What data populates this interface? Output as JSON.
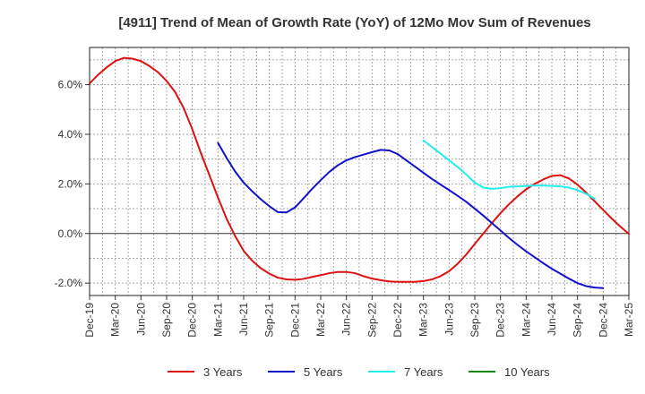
{
  "chart_data": {
    "type": "line",
    "title": "[4911]  Trend of Mean of Growth Rate (YoY) of 12Mo Mov Sum of Revenues",
    "xlabel": "",
    "ylabel": "",
    "ylim": [
      -2.5,
      7.5
    ],
    "yticks": [
      -2.0,
      0.0,
      2.0,
      4.0,
      6.0
    ],
    "ytick_labels": [
      "-2.0%",
      "0.0%",
      "2.0%",
      "4.0%",
      "6.0%"
    ],
    "x_start": "Dec-19",
    "x_count": 64,
    "x_tick_labels": [
      "Dec-19",
      "Mar-20",
      "Jun-20",
      "Sep-20",
      "Dec-20",
      "Mar-21",
      "Jun-21",
      "Sep-21",
      "Dec-21",
      "Mar-22",
      "Jun-22",
      "Sep-22",
      "Dec-22",
      "Mar-23",
      "Jun-23",
      "Sep-23",
      "Dec-23",
      "Mar-24",
      "Jun-24",
      "Sep-24",
      "Dec-24",
      "Mar-25"
    ],
    "grid": true,
    "legend_position": "bottom",
    "series": [
      {
        "name": "3 Years",
        "color": "#dd1111",
        "start_index": 0,
        "values": [
          6.05,
          6.4,
          6.7,
          6.95,
          7.08,
          7.05,
          6.95,
          6.75,
          6.5,
          6.15,
          5.7,
          5.05,
          4.2,
          3.25,
          2.35,
          1.45,
          0.6,
          -0.1,
          -0.7,
          -1.1,
          -1.4,
          -1.62,
          -1.78,
          -1.85,
          -1.87,
          -1.83,
          -1.75,
          -1.68,
          -1.6,
          -1.55,
          -1.55,
          -1.6,
          -1.72,
          -1.82,
          -1.88,
          -1.93,
          -1.95,
          -1.95,
          -1.95,
          -1.92,
          -1.85,
          -1.72,
          -1.52,
          -1.22,
          -0.85,
          -0.42,
          0.0,
          0.42,
          0.82,
          1.18,
          1.5,
          1.78,
          2.0,
          2.18,
          2.32,
          2.35,
          2.22,
          1.97,
          1.65,
          1.3,
          0.95,
          0.6,
          0.28,
          -0.02
        ]
      },
      {
        "name": "5 Years",
        "color": "#1111cc",
        "start_index": 15,
        "values": [
          3.65,
          3.05,
          2.5,
          2.05,
          1.7,
          1.38,
          1.1,
          0.86,
          0.85,
          1.05,
          1.42,
          1.8,
          2.15,
          2.48,
          2.75,
          2.95,
          3.08,
          3.18,
          3.28,
          3.37,
          3.35,
          3.2,
          2.95,
          2.7,
          2.45,
          2.2,
          1.97,
          1.75,
          1.52,
          1.28,
          1.0,
          0.72,
          0.42,
          0.12,
          -0.18,
          -0.46,
          -0.72,
          -0.96,
          -1.2,
          -1.42,
          -1.62,
          -1.82,
          -2.0,
          -2.12,
          -2.18,
          -2.2
        ]
      },
      {
        "name": "7 Years",
        "color": "#22eeee",
        "start_index": 39,
        "values": [
          3.75,
          3.48,
          3.22,
          2.95,
          2.68,
          2.38,
          2.05,
          1.85,
          1.8,
          1.83,
          1.88,
          1.9,
          1.92,
          1.93,
          1.93,
          1.92,
          1.9,
          1.85,
          1.75,
          1.6,
          1.4
        ]
      },
      {
        "name": "10 Years",
        "color": "#118811",
        "start_index": 0,
        "values": []
      }
    ]
  }
}
